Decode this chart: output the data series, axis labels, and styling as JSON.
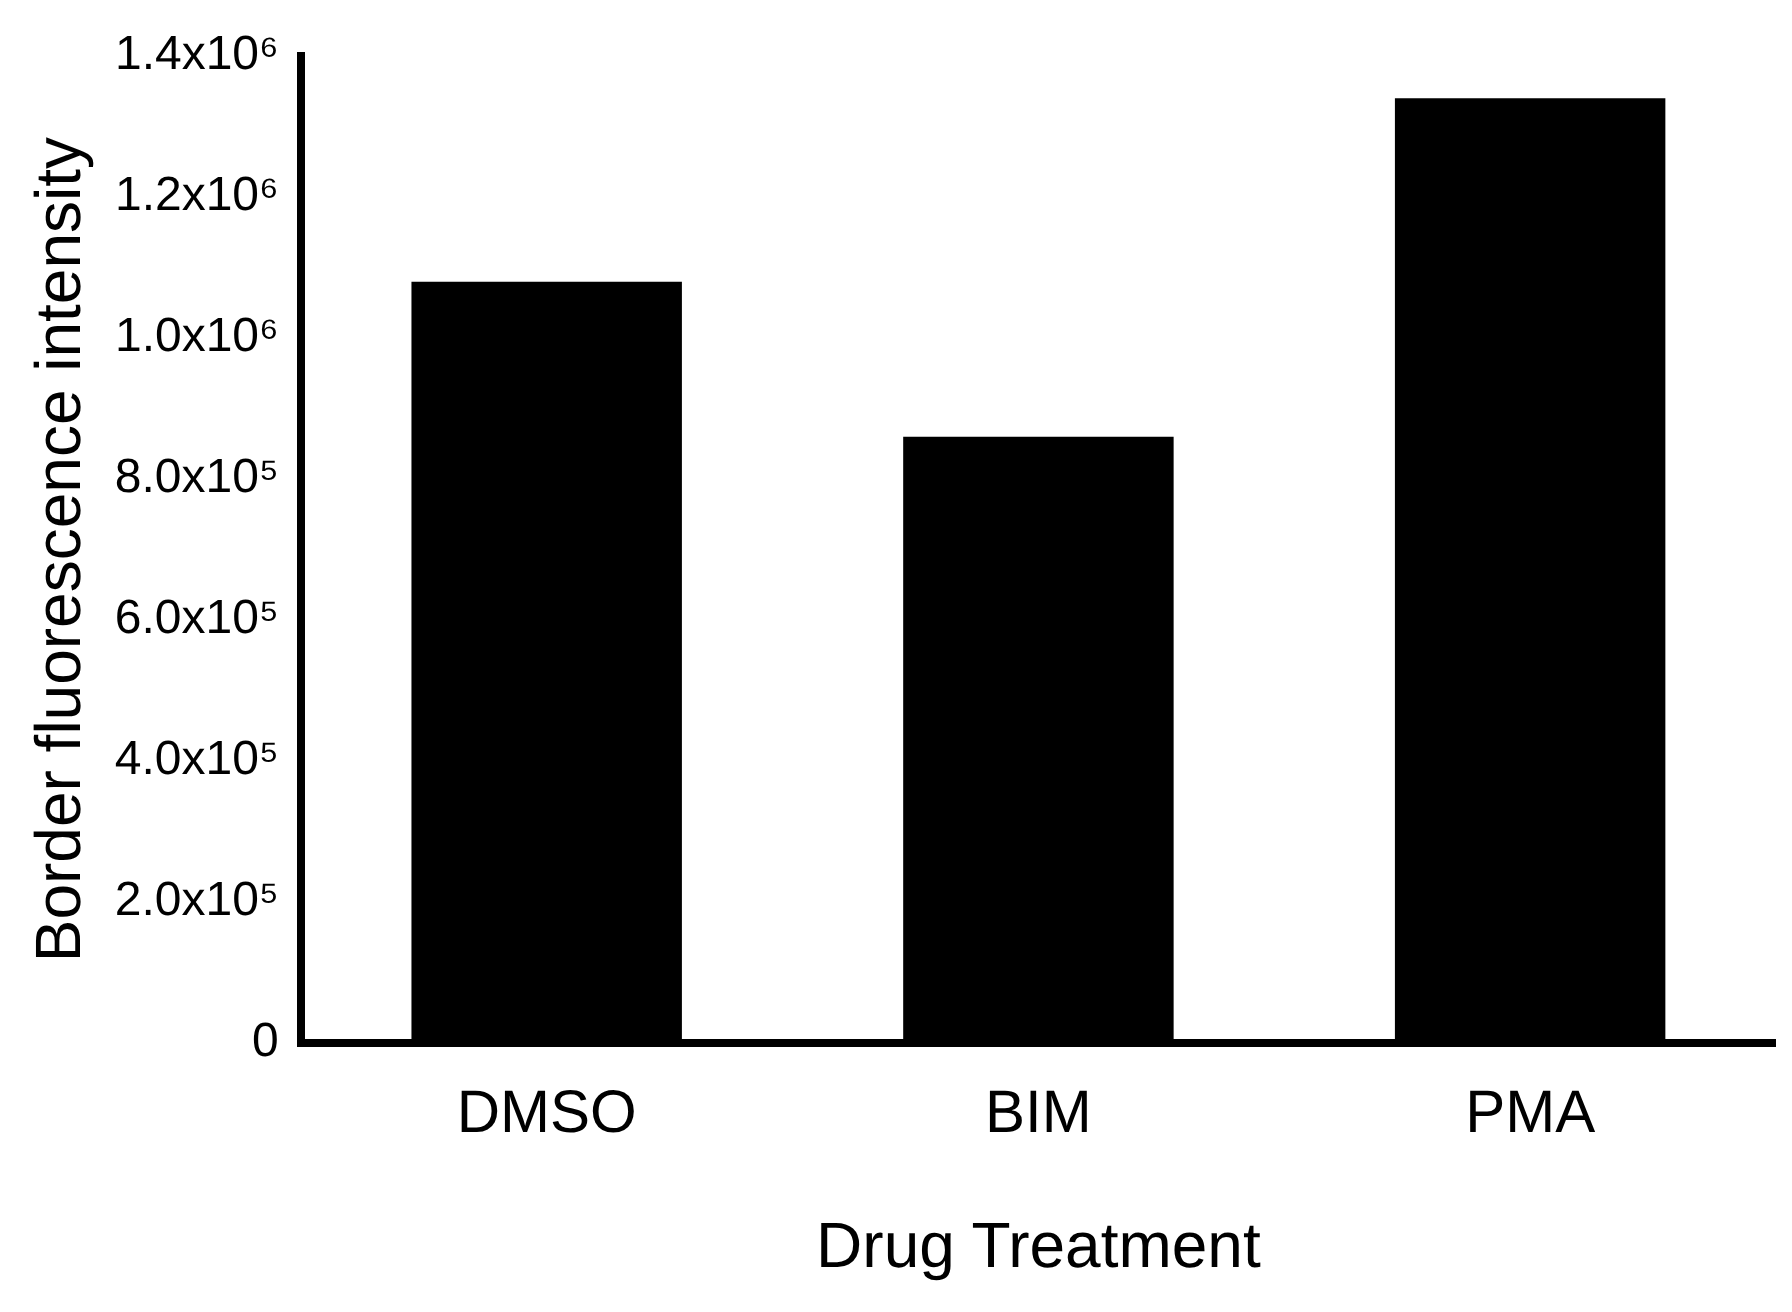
{
  "chart_data": {
    "type": "bar",
    "xlabel": "Drug Treatment",
    "ylabel": "Border fluorescence intensity",
    "categories": [
      "DMSO",
      "BIM",
      "PMA"
    ],
    "values": [
      1080000,
      860000,
      1340000
    ],
    "color": "#000000",
    "ylim": [
      0,
      1400000
    ],
    "yticks": [
      {
        "value": 0,
        "label": "0"
      },
      {
        "value": 200000,
        "label": "2.0x10⁵"
      },
      {
        "value": 400000,
        "label": "4.0x10⁵"
      },
      {
        "value": 600000,
        "label": "6.0x10⁵"
      },
      {
        "value": 800000,
        "label": "8.0x10⁵"
      },
      {
        "value": 1000000,
        "label": "1.0x10⁶"
      },
      {
        "value": 1200000,
        "label": "1.2x10⁶"
      },
      {
        "value": 1400000,
        "label": "1.4x10⁶"
      }
    ],
    "grid": false,
    "legend": false
  }
}
